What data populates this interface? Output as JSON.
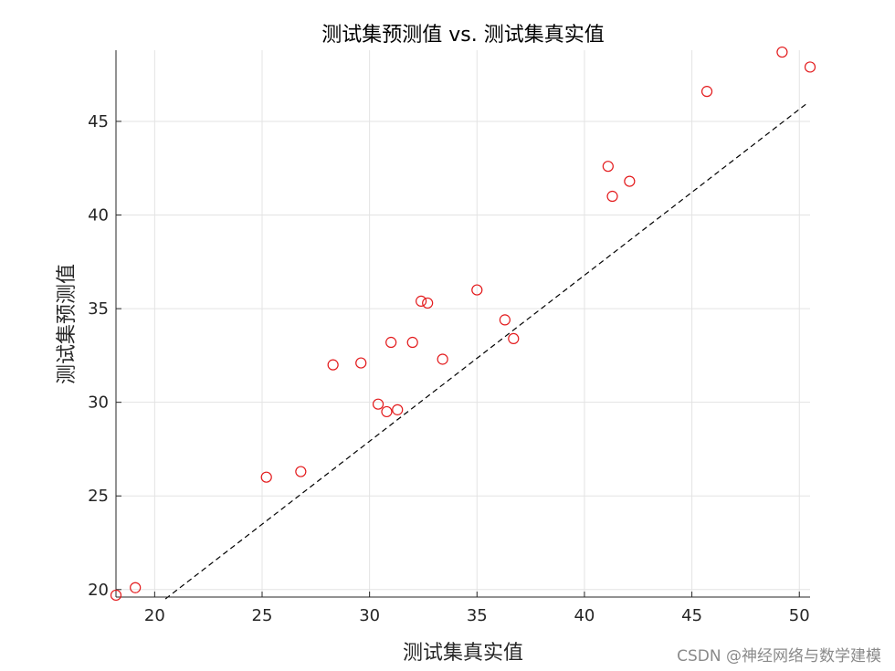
{
  "chart_data": {
    "type": "scatter",
    "title": "测试集预测值 vs. 测试集真实值",
    "xlabel": "测试集真实值",
    "ylabel": "测试集预测值",
    "xlim": [
      18.2,
      50.5
    ],
    "ylim": [
      19.6,
      48.8
    ],
    "x_ticks": [
      20,
      25,
      30,
      35,
      40,
      45,
      50
    ],
    "y_ticks": [
      20,
      25,
      30,
      35,
      40,
      45
    ],
    "grid": true,
    "marker_color": "#e31a1c",
    "reference_line": {
      "style": "dashed",
      "color": "#000000",
      "from": [
        20.5,
        19.5
      ],
      "to": [
        50.4,
        46.0
      ]
    },
    "points": [
      {
        "x": 18.2,
        "y": 19.7
      },
      {
        "x": 19.1,
        "y": 20.1
      },
      {
        "x": 25.2,
        "y": 26.0
      },
      {
        "x": 26.8,
        "y": 26.3
      },
      {
        "x": 28.3,
        "y": 32.0
      },
      {
        "x": 29.6,
        "y": 32.1
      },
      {
        "x": 30.4,
        "y": 29.9
      },
      {
        "x": 30.8,
        "y": 29.5
      },
      {
        "x": 31.0,
        "y": 33.2
      },
      {
        "x": 31.3,
        "y": 29.6
      },
      {
        "x": 32.0,
        "y": 33.2
      },
      {
        "x": 32.4,
        "y": 35.4
      },
      {
        "x": 32.7,
        "y": 35.3
      },
      {
        "x": 33.4,
        "y": 32.3
      },
      {
        "x": 35.0,
        "y": 36.0
      },
      {
        "x": 36.3,
        "y": 34.4
      },
      {
        "x": 36.7,
        "y": 33.4
      },
      {
        "x": 41.1,
        "y": 42.6
      },
      {
        "x": 41.3,
        "y": 41.0
      },
      {
        "x": 42.1,
        "y": 41.8
      },
      {
        "x": 45.7,
        "y": 46.6
      },
      {
        "x": 49.2,
        "y": 48.7
      },
      {
        "x": 50.5,
        "y": 47.9
      }
    ]
  },
  "watermark": "CSDN @神经网络与数学建模"
}
